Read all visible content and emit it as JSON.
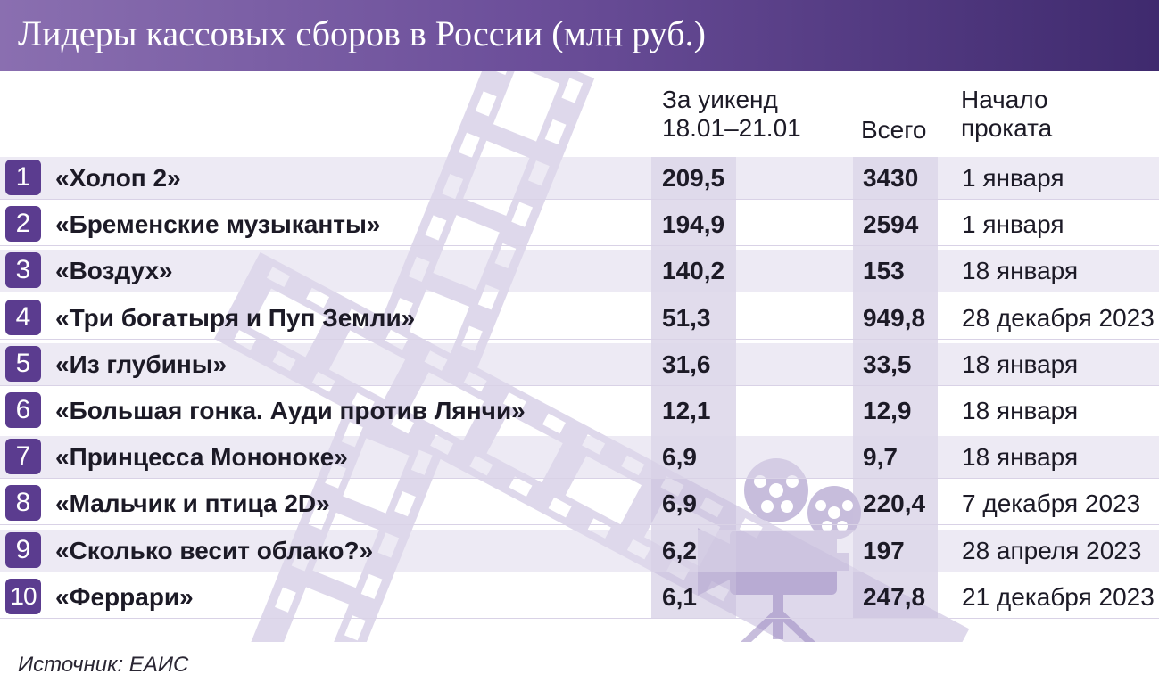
{
  "title": "Лидеры кассовых сборов в России (млн руб.)",
  "columns": {
    "week_line1": "За уикенд",
    "week_line2": "18.01–21.01",
    "total": "Всего",
    "start_line1": "Начало",
    "start_line2": "проката"
  },
  "rows": [
    {
      "rank": "1",
      "film": "«Холоп 2»",
      "week": "209,5",
      "total": "3430",
      "start": "1 января"
    },
    {
      "rank": "2",
      "film": "«Бременские музыканты»",
      "week": "194,9",
      "total": "2594",
      "start": "1 января"
    },
    {
      "rank": "3",
      "film": "«Воздух»",
      "week": "140,2",
      "total": "153",
      "start": "18 января"
    },
    {
      "rank": "4",
      "film": "«Три богатыря и Пуп Земли»",
      "week": "51,3",
      "total": "949,8",
      "start": "28 декабря 2023"
    },
    {
      "rank": "5",
      "film": "«Из глубины»",
      "week": "31,6",
      "total": "33,5",
      "start": "18 января"
    },
    {
      "rank": "6",
      "film": "«Большая гонка. Ауди против Лянчи»",
      "week": "12,1",
      "total": "12,9",
      "start": "18 января"
    },
    {
      "rank": "7",
      "film": "«Принцесса Мононоке»",
      "week": "6,9",
      "total": "9,7",
      "start": "18 января"
    },
    {
      "rank": "8",
      "film": "«Мальчик и птица 2D»",
      "week": "6,9",
      "total": "220,4",
      "start": "7 декабря 2023"
    },
    {
      "rank": "9",
      "film": "«Сколько весит облако?»",
      "week": "6,2",
      "total": "197",
      "start": "28 апреля 2023"
    },
    {
      "rank": "10",
      "film": "«Феррари»",
      "week": "6,1",
      "total": "247,8",
      "start": "21 декабря 2023"
    }
  ],
  "source": "Источник: ЕАИС",
  "colors": {
    "header": "#6c4f9a",
    "badge": "#5b3c8f",
    "shade": "#c9bfdd"
  },
  "icons": [
    "film-strip-icon",
    "movie-camera-icon"
  ]
}
